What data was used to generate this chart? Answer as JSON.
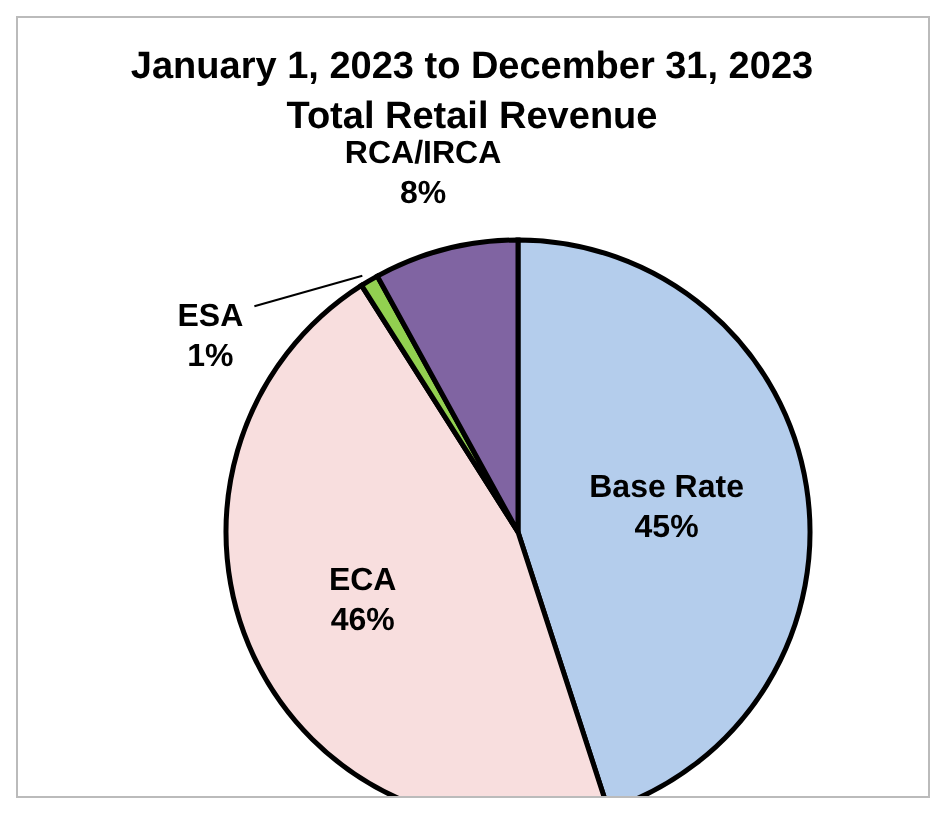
{
  "chart_data": {
    "type": "pie",
    "title": "January 1, 2023 to December 31, 2023\nTotal Retail Revenue",
    "categories": [
      "Base Rate",
      "ECA",
      "ESA",
      "RCA/IRCA"
    ],
    "values": [
      45,
      46,
      1,
      8
    ],
    "value_labels": [
      "45%",
      "46%",
      "1%",
      "8%"
    ],
    "colors": [
      "#b4cdec",
      "#f8dede",
      "#92d050",
      "#8064a2"
    ],
    "legend": false
  }
}
